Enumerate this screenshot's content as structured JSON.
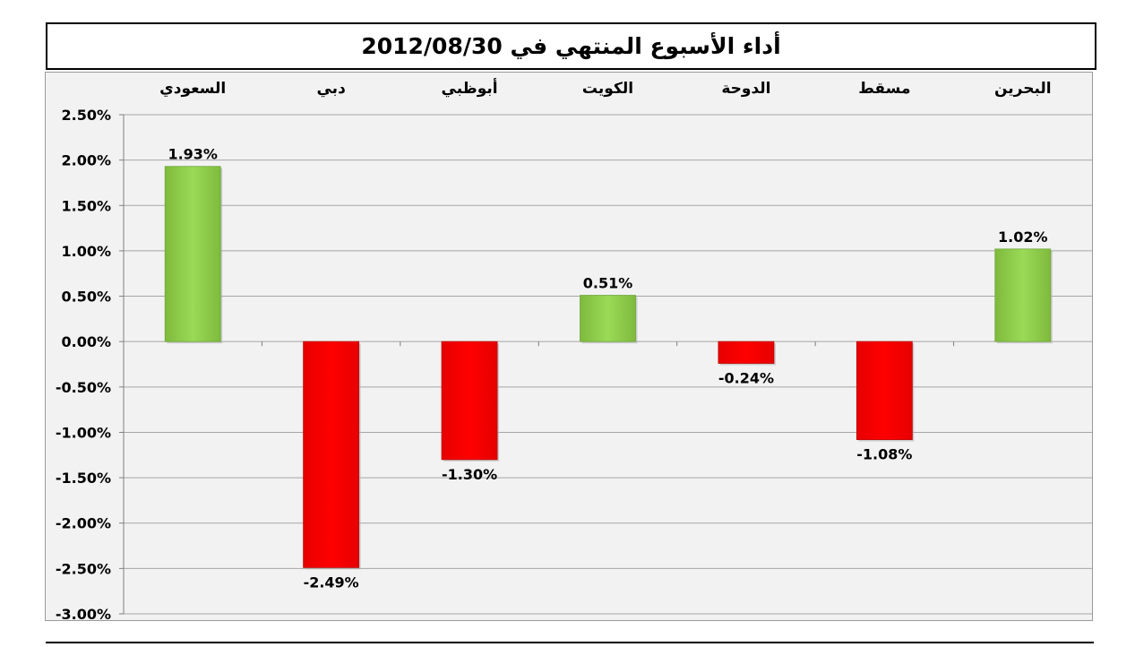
{
  "chart_data": {
    "type": "bar",
    "title": "أداء الأسبوع المنتهي في 2012/08/30",
    "categories": [
      "السعودي",
      "دبي",
      "أبوظبي",
      "الكويت",
      "الدوحة",
      "مسقط",
      "البحرين"
    ],
    "values": [
      1.93,
      -2.49,
      -1.3,
      0.51,
      -0.24,
      -1.08,
      1.02
    ],
    "data_labels": [
      "1.93%",
      "-2.49%",
      "-1.30%",
      "0.51%",
      "-0.24%",
      "-1.08%",
      "1.02%"
    ],
    "y_ticks": [
      "2.50%",
      "2.00%",
      "1.50%",
      "1.00%",
      "0.50%",
      "0.00%",
      "-0.50%",
      "-1.00%",
      "-1.50%",
      "-2.00%",
      "-2.50%",
      "-3.00%"
    ],
    "y_tick_values": [
      2.5,
      2.0,
      1.5,
      1.0,
      0.5,
      0.0,
      -0.5,
      -1.0,
      -1.5,
      -2.0,
      -2.5,
      -3.0
    ],
    "ylim": [
      -3.0,
      2.5
    ],
    "xlabel": "",
    "ylabel": "",
    "grid": true,
    "category_labels_position": "top",
    "colors": {
      "positive": "#92d050",
      "negative": "#ff0000",
      "grid": "#a6a6a6",
      "plot_background": "#f2f2f2"
    }
  }
}
